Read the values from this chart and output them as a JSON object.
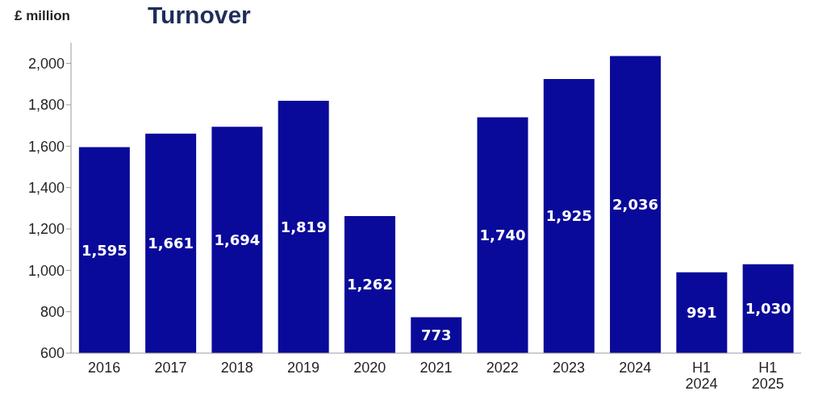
{
  "chart_data": {
    "type": "bar",
    "title": "Turnover",
    "ylabel": "£ million",
    "categories": [
      "2016",
      "2017",
      "2018",
      "2019",
      "2020",
      "2021",
      "2022",
      "2023",
      "2024",
      "H1 2024",
      "H1 2025"
    ],
    "values": [
      1595,
      1661,
      1694,
      1819,
      1262,
      773,
      1740,
      1925,
      2036,
      991,
      1030
    ],
    "value_labels": [
      "1,595",
      "1,661",
      "1,694",
      "1,819",
      "1,262",
      "773",
      "1,740",
      "1,925",
      "2,036",
      "991",
      "1,030"
    ],
    "color": "#0a0a9a",
    "ylim": [
      600,
      2100
    ],
    "yticks": [
      600,
      800,
      {
        "value": 1000,
        "label": "1,000"
      },
      {
        "value": 1200,
        "label": "1,200"
      },
      {
        "value": 1400,
        "label": "1,400"
      },
      {
        "value": 1600,
        "label": "1,600"
      },
      {
        "value": 1800,
        "label": "1,800"
      },
      {
        "value": 2000,
        "label": "2,000"
      }
    ],
    "grid": false
  }
}
